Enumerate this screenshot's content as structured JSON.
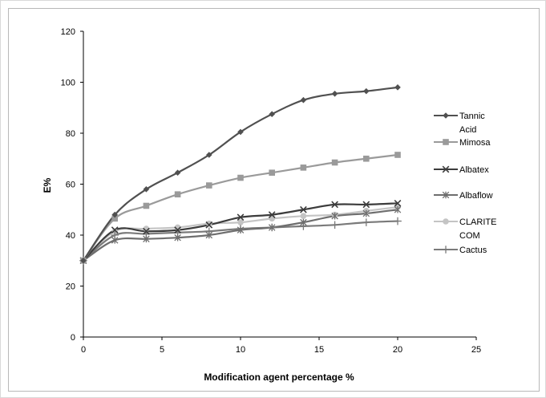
{
  "chart_data": {
    "type": "line",
    "title": "",
    "xlabel": "Modification agent percentage %",
    "ylabel": "E%",
    "xlim": [
      0,
      25
    ],
    "ylim": [
      0,
      120
    ],
    "xticks": [
      0,
      5,
      10,
      15,
      20,
      25
    ],
    "yticks": [
      0,
      20,
      40,
      60,
      80,
      100,
      120
    ],
    "grid": false,
    "legend_position": "right",
    "x": [
      0,
      2,
      4,
      6,
      8,
      10,
      12,
      14,
      16,
      18,
      20
    ],
    "series": [
      {
        "name": "Tannic Acid",
        "marker": "diamond",
        "color": "#505050",
        "values": [
          30,
          48,
          58,
          64.5,
          71.5,
          80.5,
          87.5,
          93,
          95.5,
          96.5,
          98
        ]
      },
      {
        "name": "Mimosa",
        "marker": "square",
        "color": "#9a9a9a",
        "values": [
          30,
          46.5,
          51.5,
          56,
          59.5,
          62.5,
          64.5,
          66.5,
          68.5,
          70,
          71.5
        ]
      },
      {
        "name": "Albatex",
        "marker": "x",
        "color": "#3c3c3c",
        "values": [
          30,
          42,
          41.5,
          42,
          44,
          47,
          48,
          50,
          52,
          52,
          52.5
        ]
      },
      {
        "name": "Albaflow",
        "marker": "asterisk",
        "color": "#6e6e6e",
        "values": [
          30,
          38,
          38.5,
          39,
          40,
          42,
          43,
          45,
          47.5,
          48.5,
          50
        ]
      },
      {
        "name": "CLARITE COM",
        "marker": "circle",
        "color": "#c4c4c4",
        "values": [
          30,
          41.5,
          42.5,
          43,
          44.5,
          45,
          46.5,
          47.5,
          48,
          49.5,
          51
        ]
      },
      {
        "name": "Cactus",
        "marker": "plus",
        "color": "#7a7a7a",
        "values": [
          30,
          40,
          40.5,
          41,
          41.5,
          42.5,
          43,
          43.5,
          44,
          45,
          45.5
        ]
      }
    ]
  }
}
